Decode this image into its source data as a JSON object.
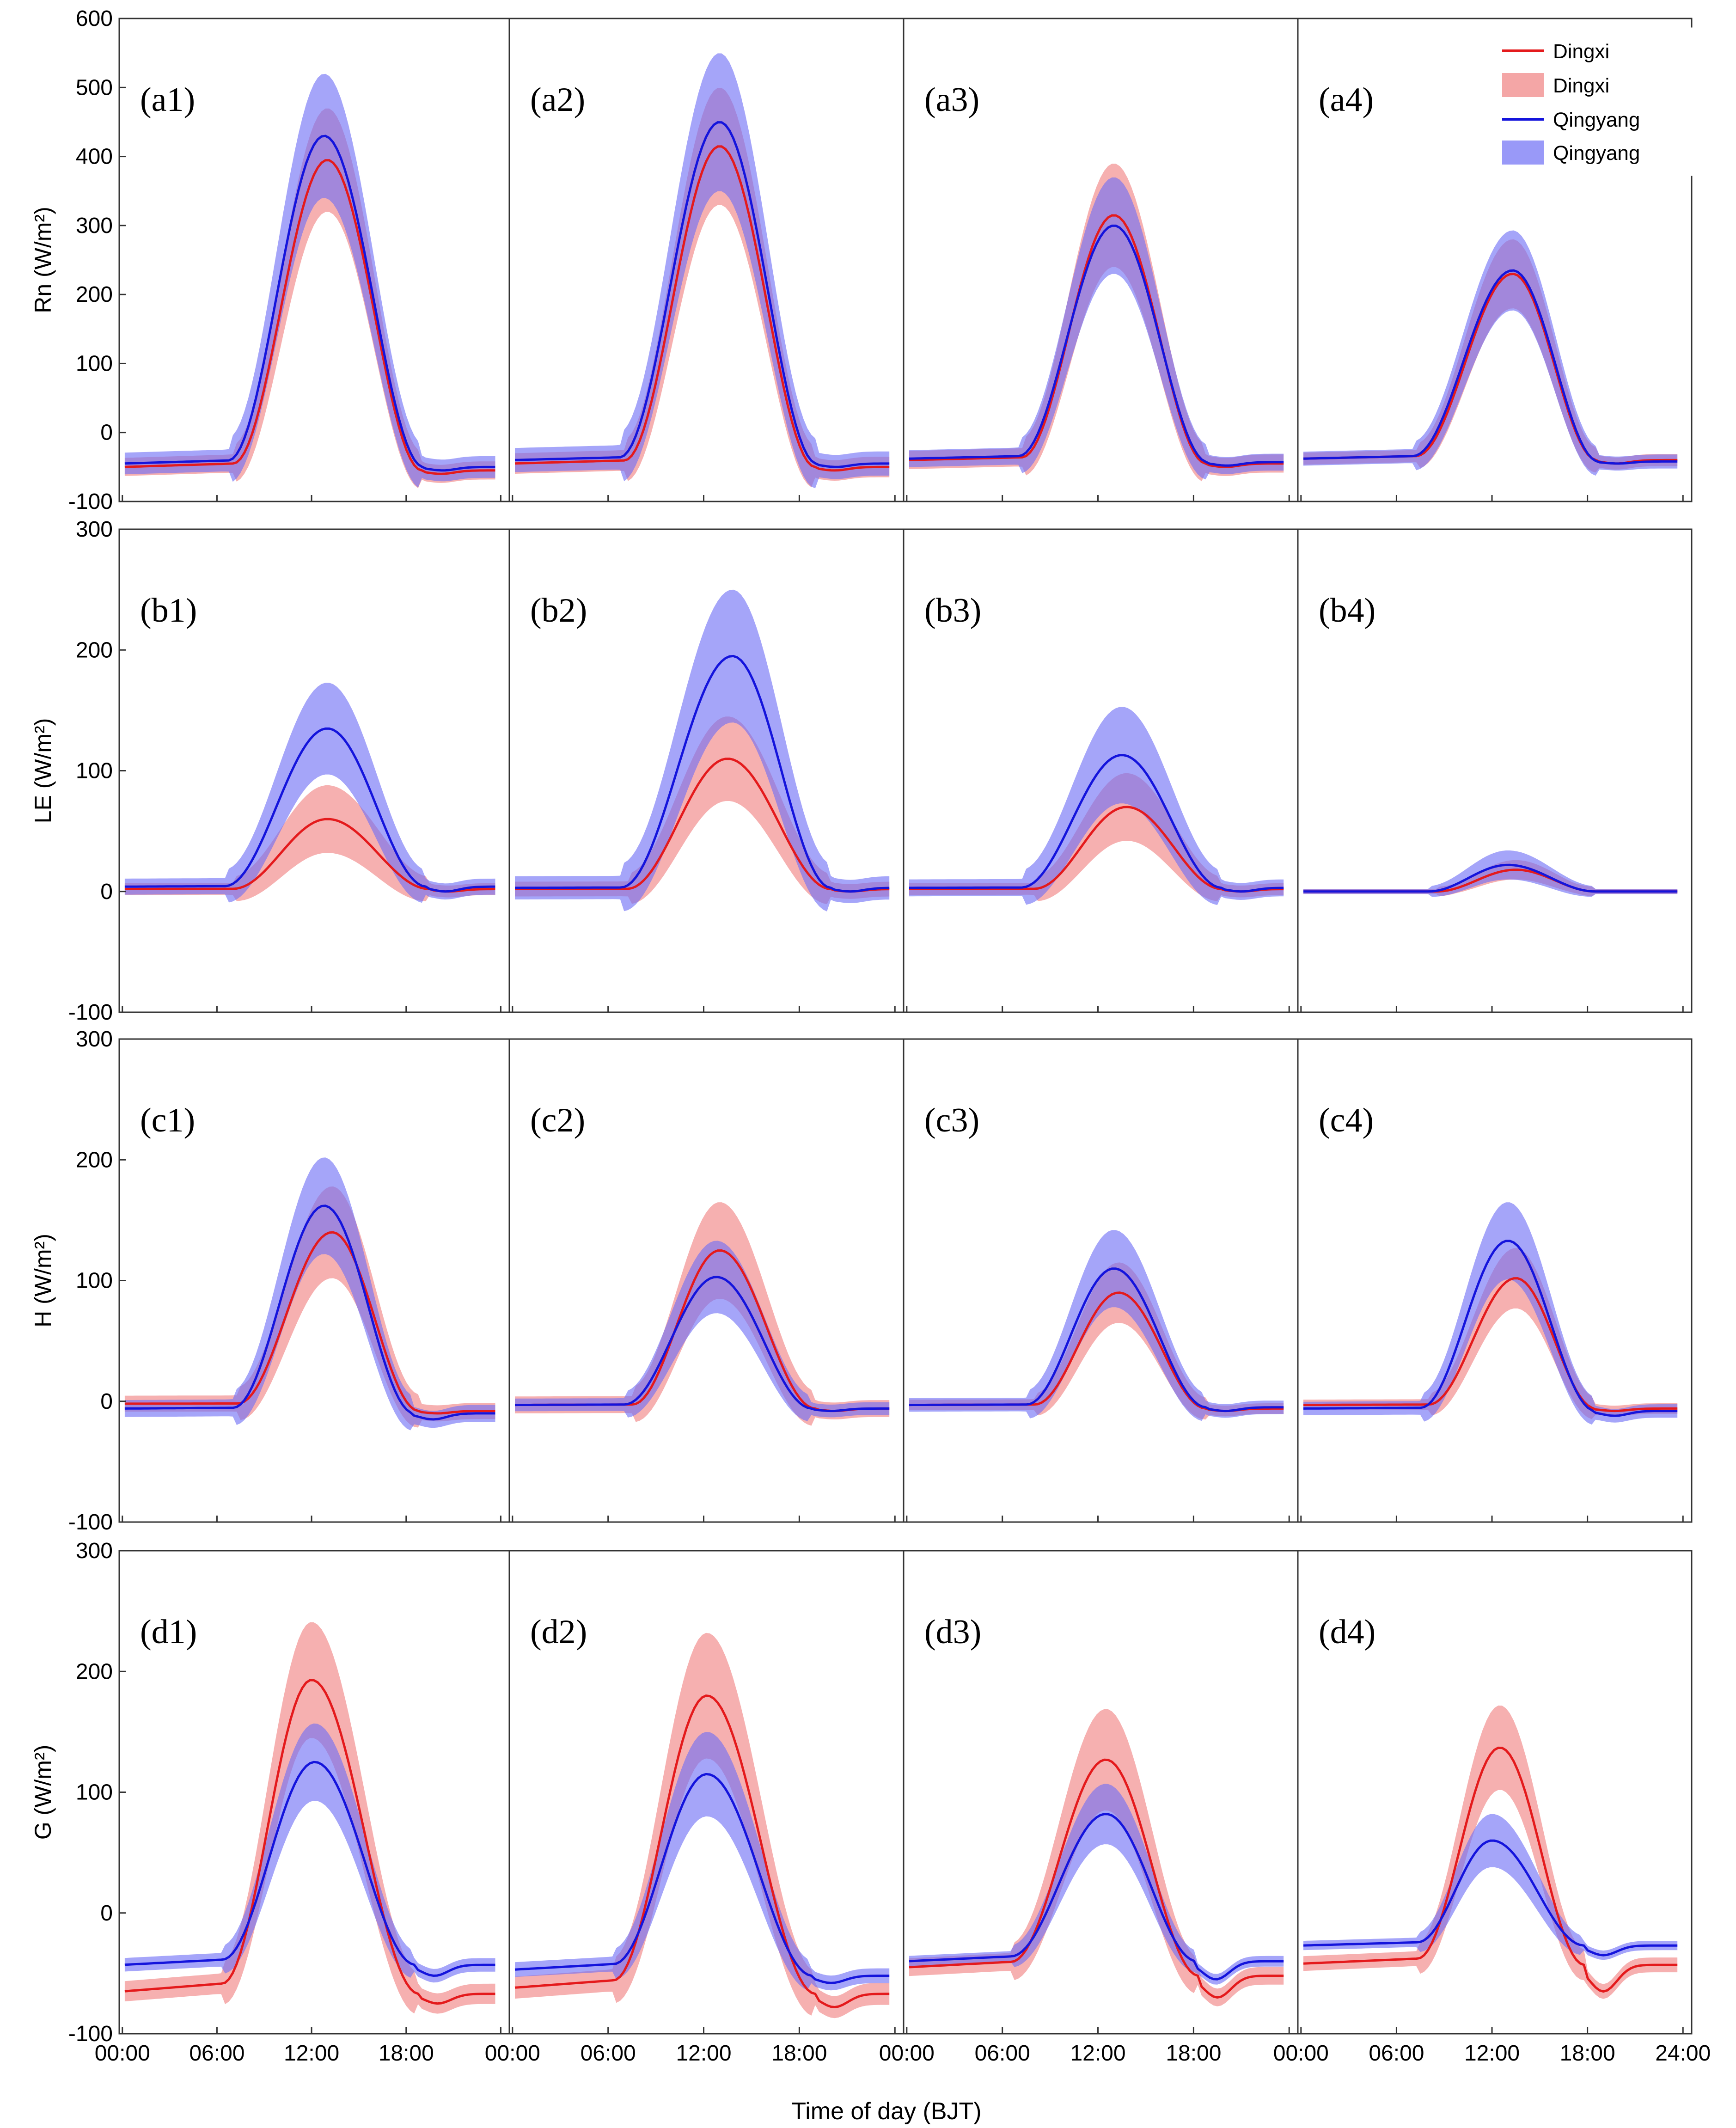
{
  "figure": {
    "xlabel": "Time of day (BJT)",
    "x_tick_labels": [
      "00:00",
      "06:00",
      "12:00",
      "18:00",
      "24:00"
    ],
    "colors": {
      "dingxi_line": "#e41a1c",
      "dingxi_band": "#f08080",
      "qingyang_line": "#1414dc",
      "qingyang_band": "#6e6ef5"
    },
    "legend": [
      "Dingxi",
      "Dingxi",
      "Qingyang",
      "Qingyang"
    ]
  },
  "chart_data": [
    {
      "type": "line",
      "row": "Rn",
      "panel": "(a1)",
      "xlabel": "Time of day (BJT)",
      "ylabel": "Rn (W/m²)",
      "ylim": [
        -100,
        600
      ],
      "yticks": [
        -100,
        0,
        100,
        200,
        300,
        400,
        500,
        600
      ],
      "xlim": [
        0,
        24
      ],
      "series": [
        {
          "name": "Dingxi",
          "kind": "line+band",
          "min": -60,
          "night_start": -50,
          "night_end": -55,
          "peak": 395,
          "peak_hour": 13.0,
          "rise_hour": 7.0,
          "set_hour": 19.0,
          "band_halfwidth": 75
        },
        {
          "name": "Qingyang",
          "kind": "line+band",
          "min": -55,
          "night_start": -45,
          "night_end": -50,
          "peak": 430,
          "peak_hour": 12.8,
          "rise_hour": 6.7,
          "set_hour": 19.1,
          "band_halfwidth": 90
        }
      ]
    },
    {
      "type": "line",
      "row": "Rn",
      "panel": "(a2)",
      "xlabel": "Time of day (BJT)",
      "ylabel": "Rn (W/m²)",
      "ylim": [
        -100,
        600
      ],
      "yticks": [
        -100,
        0,
        100,
        200,
        300,
        400,
        500,
        600
      ],
      "xlim": [
        0,
        24
      ],
      "series": [
        {
          "name": "Dingxi",
          "kind": "line+band",
          "min": -55,
          "night_start": -45,
          "night_end": -50,
          "peak": 415,
          "peak_hour": 13.0,
          "rise_hour": 7.0,
          "set_hour": 19.0,
          "band_halfwidth": 85
        },
        {
          "name": "Qingyang",
          "kind": "line+band",
          "min": -50,
          "night_start": -40,
          "night_end": -45,
          "peak": 450,
          "peak_hour": 13.0,
          "rise_hour": 6.7,
          "set_hour": 19.1,
          "band_halfwidth": 100
        }
      ]
    },
    {
      "type": "line",
      "row": "Rn",
      "panel": "(a3)",
      "xlabel": "Time of day (BJT)",
      "ylabel": "Rn (W/m²)",
      "ylim": [
        -100,
        600
      ],
      "yticks": [
        -100,
        0,
        100,
        200,
        300,
        400,
        500,
        600
      ],
      "xlim": [
        0,
        24
      ],
      "series": [
        {
          "name": "Dingxi",
          "kind": "line+band",
          "min": -50,
          "night_start": -40,
          "night_end": -45,
          "peak": 315,
          "peak_hour": 13.0,
          "rise_hour": 7.2,
          "set_hour": 18.8,
          "band_halfwidth": 75
        },
        {
          "name": "Qingyang",
          "kind": "line+band",
          "min": -48,
          "night_start": -38,
          "night_end": -43,
          "peak": 300,
          "peak_hour": 13.0,
          "rise_hour": 7.0,
          "set_hour": 18.9,
          "band_halfwidth": 70
        }
      ]
    },
    {
      "type": "line",
      "row": "Rn",
      "panel": "(a4)",
      "xlabel": "Time of day (BJT)",
      "ylabel": "Rn (W/m²)",
      "ylim": [
        -100,
        600
      ],
      "yticks": [
        -100,
        0,
        100,
        200,
        300,
        400,
        500,
        600
      ],
      "xlim": [
        0,
        24
      ],
      "series": [
        {
          "name": "Dingxi",
          "kind": "line+band",
          "min": -45,
          "night_start": -38,
          "night_end": -40,
          "peak": 230,
          "peak_hour": 13.3,
          "rise_hour": 7.2,
          "set_hour": 18.6,
          "band_halfwidth": 50
        },
        {
          "name": "Qingyang",
          "kind": "line+band",
          "min": -45,
          "night_start": -38,
          "night_end": -42,
          "peak": 235,
          "peak_hour": 13.3,
          "rise_hour": 7.0,
          "set_hour": 18.7,
          "band_halfwidth": 58
        }
      ]
    },
    {
      "type": "line",
      "row": "LE",
      "panel": "(b1)",
      "xlabel": "Time of day (BJT)",
      "ylabel": "LE (W/m²)",
      "ylim": [
        -100,
        300
      ],
      "yticks": [
        -100,
        0,
        100,
        200,
        300
      ],
      "xlim": [
        0,
        24
      ],
      "series": [
        {
          "name": "Dingxi",
          "kind": "line+band",
          "min": 0,
          "night_start": 2,
          "night_end": 2,
          "peak": 60,
          "peak_hour": 13.0,
          "rise_hour": 7.0,
          "set_hour": 19.5,
          "band_halfwidth": 28
        },
        {
          "name": "Qingyang",
          "kind": "line+band",
          "min": 0,
          "night_start": 4,
          "night_end": 4,
          "peak": 135,
          "peak_hour": 13.0,
          "rise_hour": 6.5,
          "set_hour": 19.3,
          "band_halfwidth": 38
        }
      ]
    },
    {
      "type": "line",
      "row": "LE",
      "panel": "(b2)",
      "xlabel": "Time of day (BJT)",
      "ylabel": "LE (W/m²)",
      "ylim": [
        -100,
        300
      ],
      "yticks": [
        -100,
        0,
        100,
        200,
        300
      ],
      "xlim": [
        0,
        24
      ],
      "series": [
        {
          "name": "Dingxi",
          "kind": "line+band",
          "min": 0,
          "night_start": 2,
          "night_end": 2,
          "peak": 110,
          "peak_hour": 13.5,
          "rise_hour": 7.2,
          "set_hour": 20.0,
          "band_halfwidth": 35
        },
        {
          "name": "Qingyang",
          "kind": "line+band",
          "min": 0,
          "night_start": 3,
          "night_end": 3,
          "peak": 195,
          "peak_hour": 13.8,
          "rise_hour": 6.8,
          "set_hour": 20.0,
          "band_halfwidth": 55
        }
      ]
    },
    {
      "type": "line",
      "row": "LE",
      "panel": "(b3)",
      "xlabel": "Time of day (BJT)",
      "ylabel": "LE (W/m²)",
      "ylim": [
        -100,
        300
      ],
      "yticks": [
        -100,
        0,
        100,
        200,
        300
      ],
      "xlim": [
        0,
        24
      ],
      "series": [
        {
          "name": "Dingxi",
          "kind": "line+band",
          "min": 0,
          "night_start": 2,
          "night_end": 2,
          "peak": 70,
          "peak_hour": 13.8,
          "rise_hour": 8.0,
          "set_hour": 19.8,
          "band_halfwidth": 28
        },
        {
          "name": "Qingyang",
          "kind": "line+band",
          "min": 0,
          "night_start": 3,
          "night_end": 3,
          "peak": 113,
          "peak_hour": 13.5,
          "rise_hour": 7.2,
          "set_hour": 19.8,
          "band_halfwidth": 40
        }
      ]
    },
    {
      "type": "line",
      "row": "LE",
      "panel": "(b4)",
      "xlabel": "Time of day (BJT)",
      "ylabel": "LE (W/m²)",
      "ylim": [
        -100,
        300
      ],
      "yticks": [
        -100,
        0,
        100,
        200,
        300
      ],
      "xlim": [
        0,
        24
      ],
      "series": [
        {
          "name": "Dingxi",
          "kind": "line+band",
          "min": 0,
          "night_start": 0,
          "night_end": 0,
          "peak": 18,
          "peak_hour": 13.5,
          "rise_hour": 8.5,
          "set_hour": 18.5,
          "band_halfwidth": 8
        },
        {
          "name": "Qingyang",
          "kind": "line+band",
          "min": 0,
          "night_start": 0,
          "night_end": 0,
          "peak": 22,
          "peak_hour": 13.0,
          "rise_hour": 8.0,
          "set_hour": 18.5,
          "band_halfwidth": 12
        }
      ]
    },
    {
      "type": "line",
      "row": "H",
      "panel": "(c1)",
      "xlabel": "Time of day (BJT)",
      "ylabel": "H (W/m²)",
      "ylim": [
        -100,
        300
      ],
      "yticks": [
        -100,
        0,
        100,
        200,
        300
      ],
      "xlim": [
        0,
        24
      ],
      "series": [
        {
          "name": "Dingxi",
          "kind": "line+band",
          "min": -10,
          "night_start": -2,
          "night_end": -8,
          "peak": 140,
          "peak_hour": 13.3,
          "rise_hour": 7.3,
          "set_hour": 18.8,
          "band_halfwidth": 38
        },
        {
          "name": "Qingyang",
          "kind": "line+band",
          "min": -15,
          "night_start": -6,
          "night_end": -10,
          "peak": 162,
          "peak_hour": 12.8,
          "rise_hour": 7.0,
          "set_hour": 18.5,
          "band_halfwidth": 40
        }
      ]
    },
    {
      "type": "line",
      "row": "H",
      "panel": "(c2)",
      "xlabel": "Time of day (BJT)",
      "ylabel": "H (W/m²)",
      "ylim": [
        -100,
        300
      ],
      "yticks": [
        -100,
        0,
        100,
        200,
        300
      ],
      "xlim": [
        0,
        24
      ],
      "series": [
        {
          "name": "Dingxi",
          "kind": "line+band",
          "min": -8,
          "night_start": -3,
          "night_end": -6,
          "peak": 125,
          "peak_hour": 13.0,
          "rise_hour": 7.5,
          "set_hour": 19.0,
          "band_halfwidth": 40
        },
        {
          "name": "Qingyang",
          "kind": "line+band",
          "min": -8,
          "night_start": -3,
          "night_end": -6,
          "peak": 103,
          "peak_hour": 12.8,
          "rise_hour": 7.0,
          "set_hour": 18.8,
          "band_halfwidth": 30
        }
      ]
    },
    {
      "type": "line",
      "row": "H",
      "panel": "(c3)",
      "xlabel": "Time of day (BJT)",
      "ylabel": "H (W/m²)",
      "ylim": [
        -100,
        300
      ],
      "yticks": [
        -100,
        0,
        100,
        200,
        300
      ],
      "xlim": [
        0,
        24
      ],
      "series": [
        {
          "name": "Dingxi",
          "kind": "line+band",
          "min": -8,
          "night_start": -3,
          "night_end": -6,
          "peak": 90,
          "peak_hour": 13.3,
          "rise_hour": 8.0,
          "set_hour": 18.8,
          "band_halfwidth": 25
        },
        {
          "name": "Qingyang",
          "kind": "line+band",
          "min": -8,
          "night_start": -3,
          "night_end": -5,
          "peak": 110,
          "peak_hour": 13.0,
          "rise_hour": 7.5,
          "set_hour": 18.8,
          "band_halfwidth": 32
        }
      ]
    },
    {
      "type": "line",
      "row": "H",
      "panel": "(c4)",
      "xlabel": "Time of day (BJT)",
      "ylabel": "H (W/m²)",
      "ylim": [
        -100,
        300
      ],
      "yticks": [
        -100,
        0,
        100,
        200,
        300
      ],
      "xlim": [
        0,
        24
      ],
      "series": [
        {
          "name": "Dingxi",
          "kind": "line+band",
          "min": -8,
          "night_start": -3,
          "night_end": -6,
          "peak": 102,
          "peak_hour": 13.5,
          "rise_hour": 8.0,
          "set_hour": 18.5,
          "band_halfwidth": 25
        },
        {
          "name": "Qingyang",
          "kind": "line+band",
          "min": -12,
          "night_start": -6,
          "night_end": -8,
          "peak": 133,
          "peak_hour": 13.0,
          "rise_hour": 7.5,
          "set_hour": 18.5,
          "band_halfwidth": 32
        }
      ]
    },
    {
      "type": "line",
      "row": "G",
      "panel": "(d1)",
      "xlabel": "Time of day (BJT)",
      "ylabel": "G (W/m²)",
      "ylim": [
        -100,
        300
      ],
      "yticks": [
        -100,
        0,
        100,
        200,
        300
      ],
      "xlim": [
        0,
        24
      ],
      "series": [
        {
          "name": "Dingxi",
          "kind": "line+band",
          "min": -75,
          "night_start": -65,
          "night_end": -67,
          "peak": 193,
          "peak_hour": 12.0,
          "rise_hour": 6.3,
          "set_hour": 18.8,
          "band_halfwidth": 48
        },
        {
          "name": "Qingyang",
          "kind": "line+band",
          "min": -52,
          "night_start": -43,
          "night_end": -43,
          "peak": 125,
          "peak_hour": 12.2,
          "rise_hour": 6.3,
          "set_hour": 18.6,
          "band_halfwidth": 32
        }
      ]
    },
    {
      "type": "line",
      "row": "G",
      "panel": "(d2)",
      "xlabel": "Time of day (BJT)",
      "ylabel": "G (W/m²)",
      "ylim": [
        -100,
        300
      ],
      "yticks": [
        -100,
        0,
        100,
        200,
        300
      ],
      "xlim": [
        0,
        24
      ],
      "series": [
        {
          "name": "Dingxi",
          "kind": "line+band",
          "min": -78,
          "night_start": -62,
          "night_end": -67,
          "peak": 180,
          "peak_hour": 12.2,
          "rise_hour": 6.3,
          "set_hour": 19.0,
          "band_halfwidth": 52
        },
        {
          "name": "Qingyang",
          "kind": "line+band",
          "min": -58,
          "night_start": -47,
          "night_end": -52,
          "peak": 115,
          "peak_hour": 12.2,
          "rise_hour": 6.3,
          "set_hour": 18.8,
          "band_halfwidth": 35
        }
      ]
    },
    {
      "type": "line",
      "row": "G",
      "panel": "(d3)",
      "xlabel": "Time of day (BJT)",
      "ylabel": "G (W/m²)",
      "ylim": [
        -100,
        300
      ],
      "yticks": [
        -100,
        0,
        100,
        200,
        300
      ],
      "xlim": [
        0,
        24
      ],
      "series": [
        {
          "name": "Dingxi",
          "kind": "line+band",
          "min": -70,
          "night_start": -45,
          "night_end": -52,
          "peak": 127,
          "peak_hour": 12.5,
          "rise_hour": 6.5,
          "set_hour": 18.3,
          "band_halfwidth": 42
        },
        {
          "name": "Qingyang",
          "kind": "line+band",
          "min": -55,
          "night_start": -40,
          "night_end": -40,
          "peak": 82,
          "peak_hour": 12.5,
          "rise_hour": 6.5,
          "set_hour": 18.2,
          "band_halfwidth": 25
        }
      ]
    },
    {
      "type": "line",
      "row": "G",
      "panel": "(d4)",
      "xlabel": "Time of day (BJT)",
      "ylabel": "G (W/m²)",
      "ylim": [
        -100,
        300
      ],
      "yticks": [
        -100,
        0,
        100,
        200,
        300
      ],
      "xlim": [
        0,
        24
      ],
      "series": [
        {
          "name": "Dingxi",
          "kind": "line+band",
          "min": -65,
          "night_start": -42,
          "night_end": -43,
          "peak": 137,
          "peak_hour": 12.5,
          "rise_hour": 7.3,
          "set_hour": 17.8,
          "band_halfwidth": 35
        },
        {
          "name": "Qingyang",
          "kind": "line+band",
          "min": -35,
          "night_start": -27,
          "night_end": -27,
          "peak": 60,
          "peak_hour": 12.0,
          "rise_hour": 7.3,
          "set_hour": 17.8,
          "band_halfwidth": 22
        }
      ]
    }
  ]
}
